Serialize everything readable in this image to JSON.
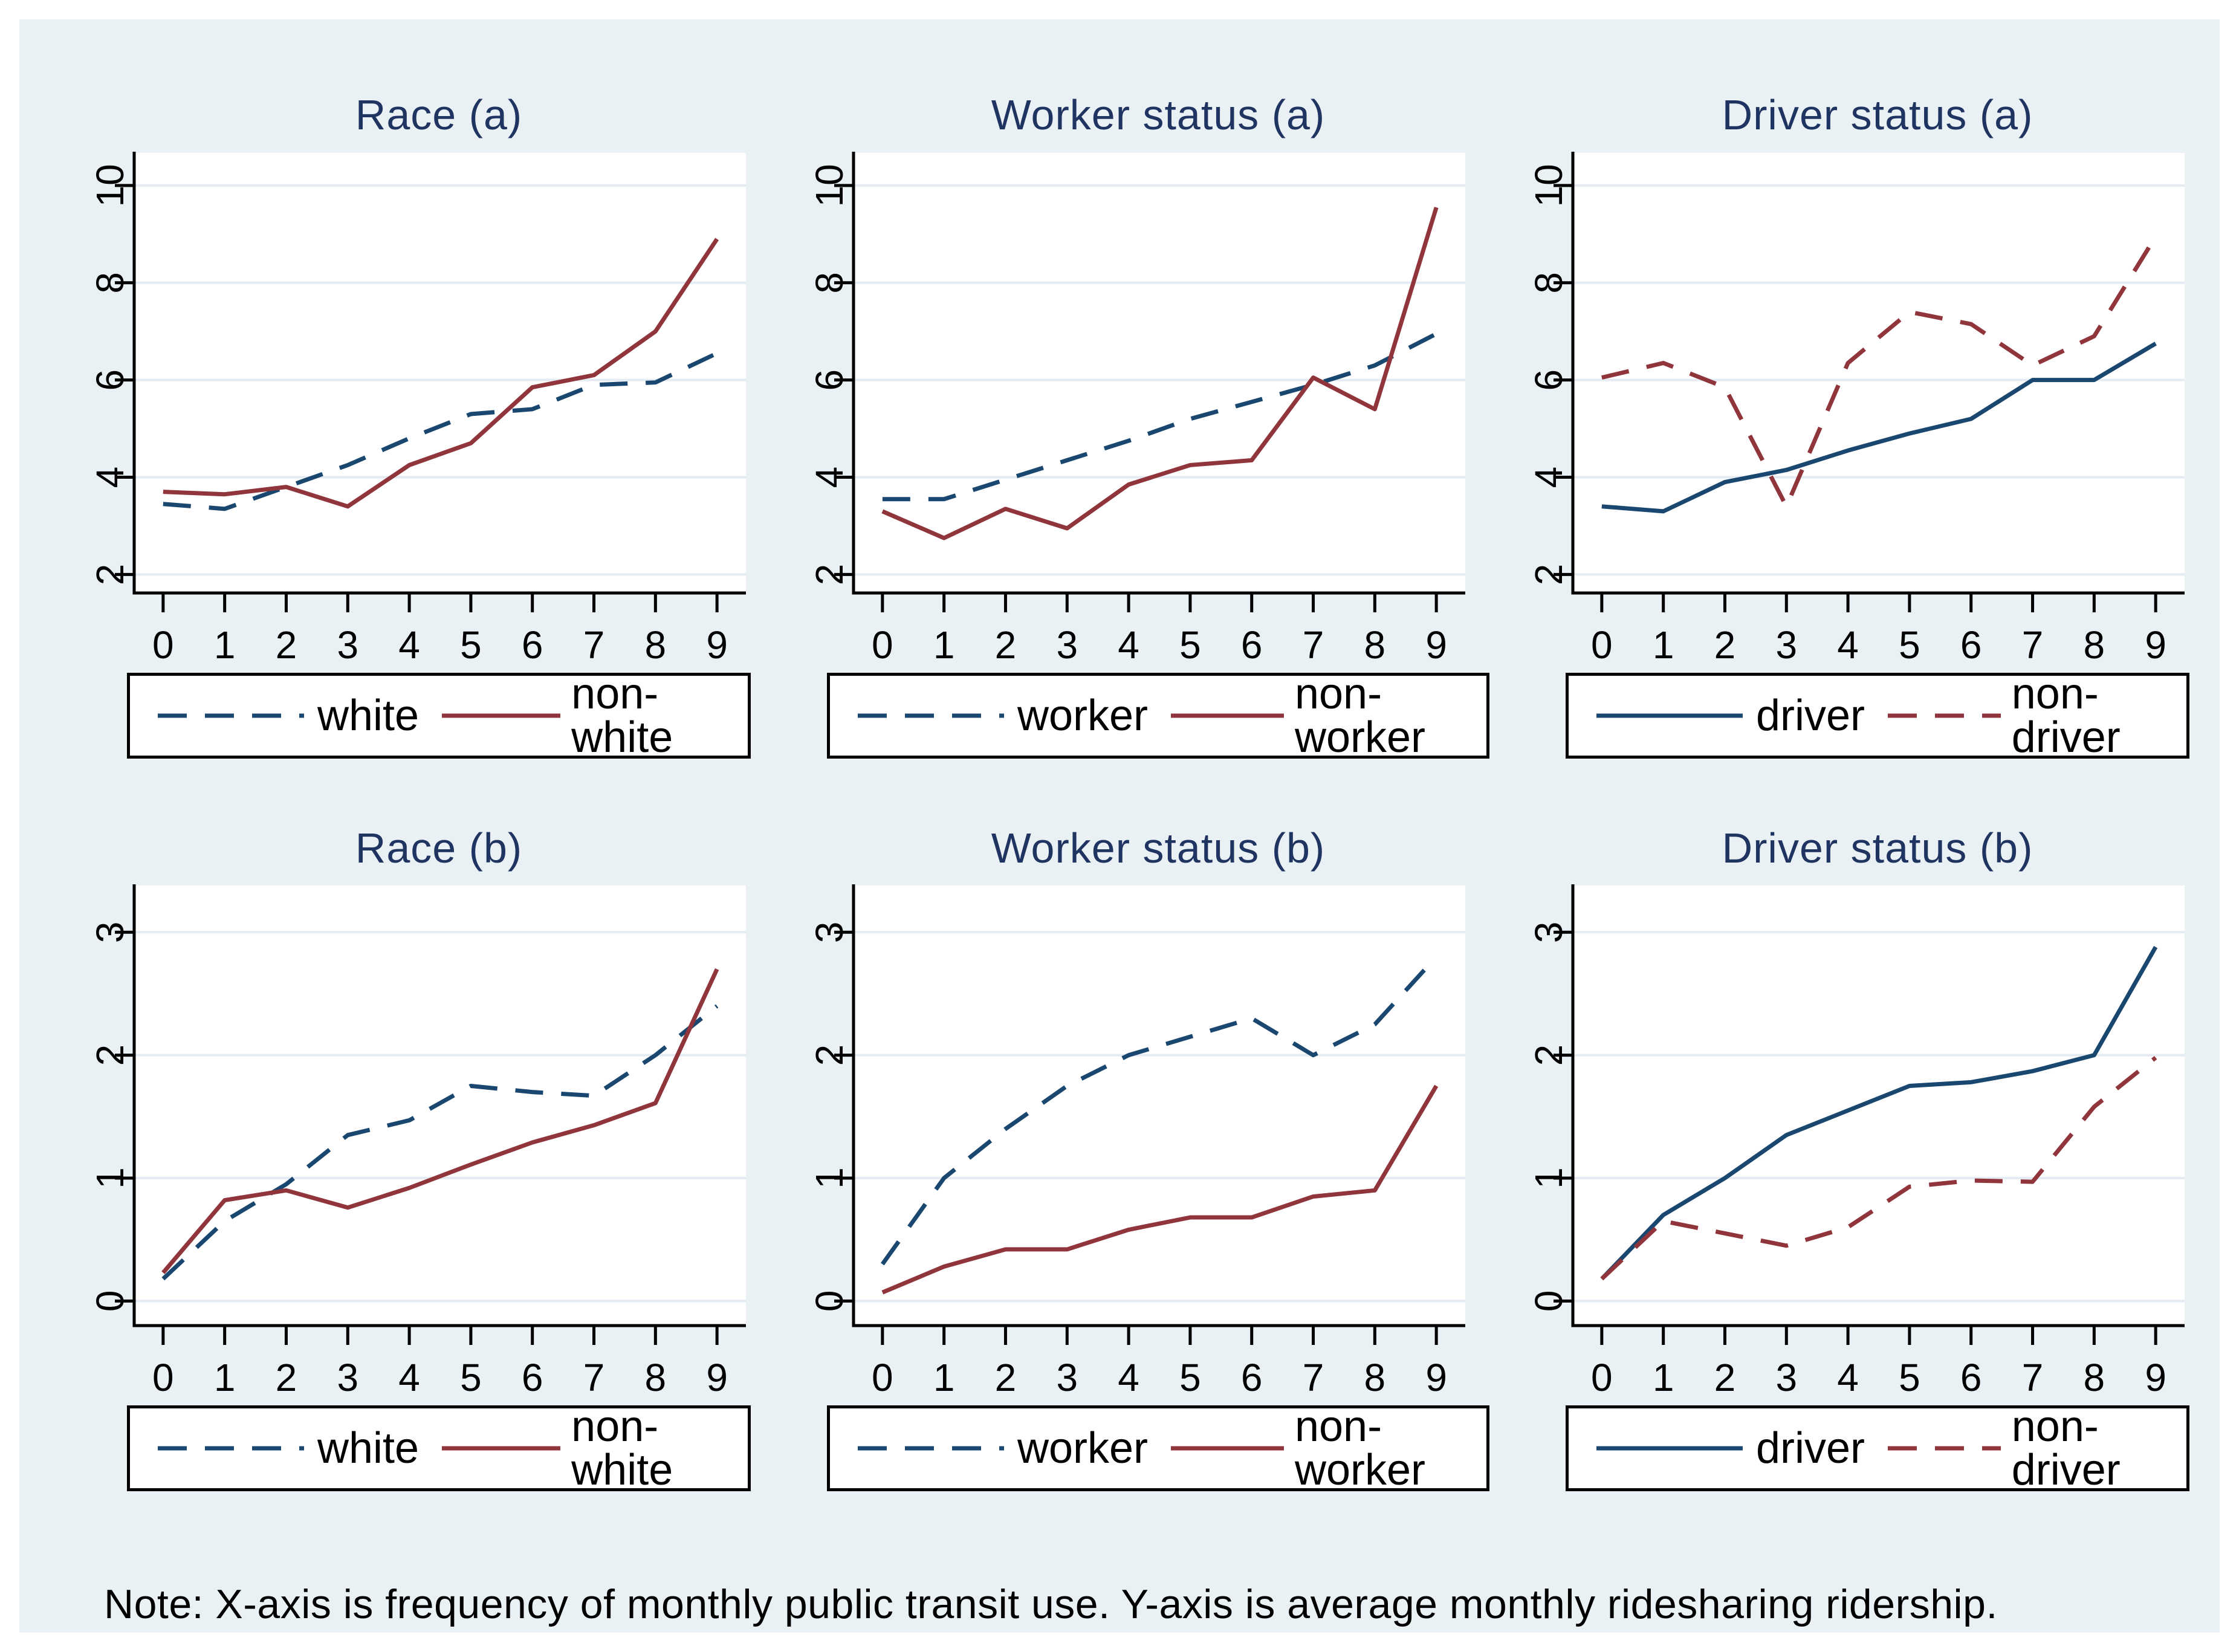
{
  "note": "Note: X-axis is frequency of monthly public transit use. Y-axis is average monthly ridesharing ridership.",
  "colors": {
    "navy": "#1a476f",
    "maroon": "#90353b",
    "title_navy": "#203462",
    "canvas_background": "#eaf1f4",
    "plot_background": "#ffffff",
    "gridline": "#e4ebf2",
    "axis": "#000000"
  },
  "axes": {
    "x_ticks": [
      0,
      1,
      2,
      3,
      4,
      5,
      6,
      7,
      8,
      9
    ],
    "row_a_y_ticks": [
      2,
      4,
      6,
      8,
      10
    ],
    "row_b_y_ticks": [
      0,
      1,
      2,
      3
    ]
  },
  "chart_data": [
    {
      "type": "line",
      "title": "Race (a)",
      "xlabel": "",
      "ylabel": "",
      "x": [
        0,
        1,
        2,
        3,
        4,
        5,
        6,
        7,
        8,
        9
      ],
      "yticks": [
        2,
        4,
        6,
        8,
        10
      ],
      "ylim": [
        1.62,
        10.67
      ],
      "grid": "horizontal",
      "legend_position": "below",
      "series": [
        {
          "name": "white",
          "color": "navy",
          "dashed": true,
          "values": [
            3.45,
            3.35,
            3.8,
            4.25,
            4.8,
            5.3,
            5.4,
            5.9,
            5.95,
            6.55
          ]
        },
        {
          "name": "non-white",
          "color": "maroon",
          "dashed": false,
          "values": [
            3.7,
            3.65,
            3.8,
            3.4,
            4.25,
            4.7,
            5.85,
            6.1,
            7.0,
            8.9
          ]
        }
      ]
    },
    {
      "type": "line",
      "title": "Worker status (a)",
      "xlabel": "",
      "ylabel": "",
      "x": [
        0,
        1,
        2,
        3,
        4,
        5,
        6,
        7,
        8,
        9
      ],
      "yticks": [
        2,
        4,
        6,
        8,
        10
      ],
      "ylim": [
        1.62,
        10.67
      ],
      "grid": "horizontal",
      "legend_position": "below",
      "series": [
        {
          "name": "worker",
          "color": "navy",
          "dashed": true,
          "values": [
            3.55,
            3.55,
            3.95,
            4.35,
            4.75,
            5.2,
            5.55,
            5.9,
            6.3,
            6.95
          ]
        },
        {
          "name": "non-worker",
          "color": "maroon",
          "dashed": false,
          "values": [
            3.3,
            2.75,
            3.35,
            2.95,
            3.85,
            4.25,
            4.35,
            6.05,
            5.4,
            9.55
          ]
        }
      ]
    },
    {
      "type": "line",
      "title": "Driver status (a)",
      "xlabel": "",
      "ylabel": "",
      "x": [
        0,
        1,
        2,
        3,
        4,
        5,
        6,
        7,
        8,
        9
      ],
      "yticks": [
        2,
        4,
        6,
        8,
        10
      ],
      "ylim": [
        1.62,
        10.67
      ],
      "grid": "horizontal",
      "legend_position": "below",
      "series": [
        {
          "name": "driver",
          "color": "navy",
          "dashed": false,
          "values": [
            3.4,
            3.3,
            3.9,
            4.15,
            4.55,
            4.9,
            5.2,
            6.0,
            6.0,
            6.75
          ]
        },
        {
          "name": "non-driver",
          "color": "maroon",
          "dashed": true,
          "values": [
            6.05,
            6.35,
            5.85,
            3.4,
            6.35,
            7.4,
            7.15,
            6.3,
            6.9,
            8.95
          ]
        }
      ]
    },
    {
      "type": "line",
      "title": "Race (b)",
      "xlabel": "",
      "ylabel": "",
      "x": [
        0,
        1,
        2,
        3,
        4,
        5,
        6,
        7,
        8,
        9
      ],
      "yticks": [
        0,
        1,
        2,
        3
      ],
      "ylim": [
        -0.2,
        3.38
      ],
      "grid": "horizontal",
      "legend_position": "below",
      "series": [
        {
          "name": "white",
          "color": "navy",
          "dashed": true,
          "values": [
            0.18,
            0.65,
            0.95,
            1.35,
            1.47,
            1.75,
            1.7,
            1.67,
            2.0,
            2.4
          ]
        },
        {
          "name": "non-white",
          "color": "maroon",
          "dashed": false,
          "values": [
            0.23,
            0.82,
            0.9,
            0.76,
            0.92,
            1.11,
            1.29,
            1.43,
            1.61,
            2.7
          ]
        }
      ]
    },
    {
      "type": "line",
      "title": "Worker status (b)",
      "xlabel": "",
      "ylabel": "",
      "x": [
        0,
        1,
        2,
        3,
        4,
        5,
        6,
        7,
        8,
        9
      ],
      "yticks": [
        0,
        1,
        2,
        3
      ],
      "ylim": [
        -0.2,
        3.38
      ],
      "grid": "horizontal",
      "legend_position": "below",
      "series": [
        {
          "name": "worker",
          "color": "navy",
          "dashed": true,
          "values": [
            0.3,
            1.0,
            1.4,
            1.75,
            2.0,
            2.15,
            2.3,
            2.0,
            2.25,
            2.8
          ]
        },
        {
          "name": "non-worker",
          "color": "maroon",
          "dashed": false,
          "values": [
            0.07,
            0.28,
            0.42,
            0.42,
            0.58,
            0.68,
            0.68,
            0.85,
            0.9,
            1.75
          ]
        }
      ]
    },
    {
      "type": "line",
      "title": "Driver status (b)",
      "xlabel": "",
      "ylabel": "",
      "x": [
        0,
        1,
        2,
        3,
        4,
        5,
        6,
        7,
        8,
        9
      ],
      "yticks": [
        0,
        1,
        2,
        3
      ],
      "ylim": [
        -0.2,
        3.38
      ],
      "grid": "horizontal",
      "legend_position": "below",
      "series": [
        {
          "name": "driver",
          "color": "navy",
          "dashed": false,
          "values": [
            0.18,
            0.7,
            1.0,
            1.35,
            1.55,
            1.75,
            1.78,
            1.87,
            2.0,
            2.88
          ]
        },
        {
          "name": "non-driver",
          "color": "maroon",
          "dashed": true,
          "values": [
            0.18,
            0.65,
            0.55,
            0.45,
            0.6,
            0.93,
            0.98,
            0.97,
            1.58,
            1.98
          ]
        }
      ]
    }
  ]
}
